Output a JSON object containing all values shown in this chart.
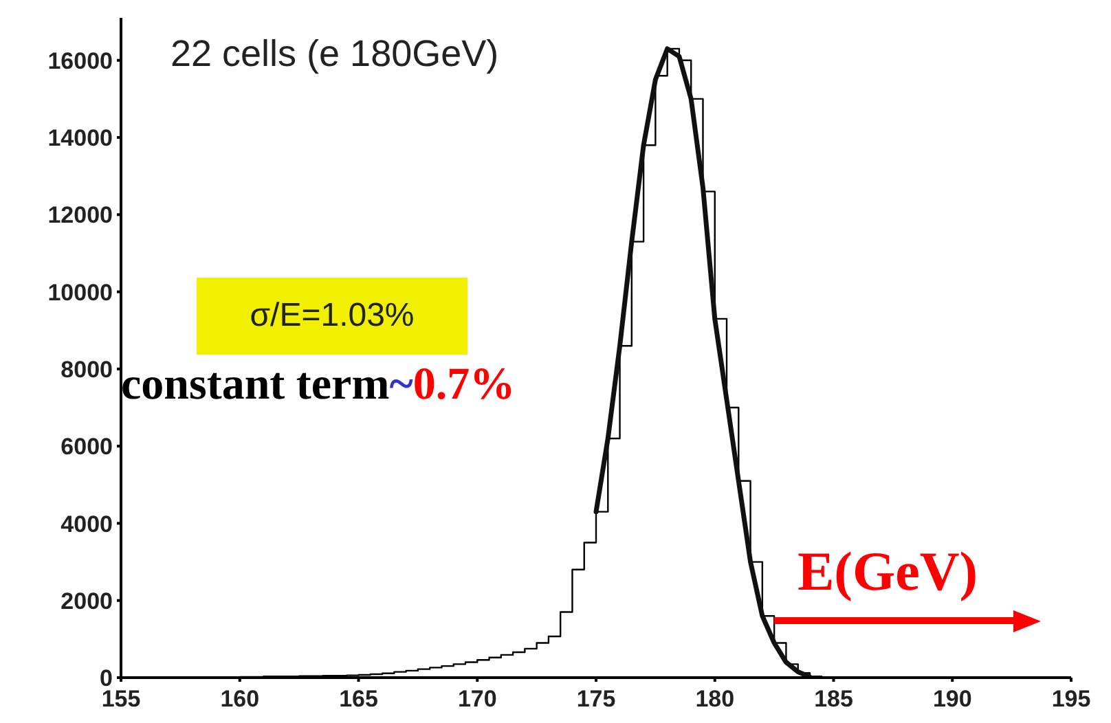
{
  "chart_data": {
    "type": "histogram",
    "xlabel": "E(GeV)",
    "annotations": [
      "22 cells (e 180GeV)",
      "σ/E=1.03%",
      "constant term~0.7%"
    ],
    "xlim": [
      155,
      195
    ],
    "xticks": [
      155,
      160,
      165,
      170,
      175,
      180,
      185,
      190,
      195
    ],
    "ylim": [
      0,
      17100
    ],
    "yticks": [
      0,
      2000,
      4000,
      6000,
      8000,
      10000,
      12000,
      14000,
      16000
    ],
    "grid": false,
    "legend": false,
    "series": [
      {
        "type": "histogram",
        "color": "#000000",
        "bins": [
          160,
          160.5,
          161,
          161.5,
          162,
          162.5,
          163,
          163.5,
          164,
          164.5,
          165,
          165.5,
          166,
          166.5,
          167,
          167.5,
          168,
          168.5,
          169,
          169.5,
          170,
          170.5,
          171,
          171.5,
          172,
          172.5,
          173,
          173.5,
          174,
          174.5,
          175,
          175.5,
          176,
          176.5,
          177,
          177.5,
          178,
          178.5,
          179,
          179.5,
          180,
          180.5,
          181,
          181.5,
          182,
          182.5,
          183,
          183.5,
          184,
          184.5,
          185
        ],
        "values": [
          20,
          20,
          30,
          30,
          30,
          40,
          40,
          50,
          50,
          60,
          70,
          90,
          110,
          150,
          180,
          220,
          260,
          300,
          350,
          400,
          460,
          520,
          590,
          660,
          750,
          900,
          1070,
          1700,
          2800,
          3500,
          4300,
          6200,
          8600,
          11300,
          13800,
          15600,
          16300,
          16000,
          15000,
          12600,
          9300,
          7000,
          5100,
          3000,
          1600,
          900,
          350,
          120,
          30,
          0
        ]
      },
      {
        "type": "line",
        "color": "#111111",
        "x": [
          175,
          175.5,
          176,
          176.5,
          177,
          177.5,
          178,
          178.5,
          179,
          179.5,
          180,
          180.5,
          181,
          181.5,
          182,
          182.5,
          183,
          183.5,
          184
        ],
        "values": [
          4300,
          6200,
          8600,
          11300,
          13800,
          15500,
          16300,
          16100,
          15000,
          12700,
          9300,
          7200,
          5100,
          3000,
          1600,
          900,
          400,
          150,
          20
        ]
      }
    ]
  }
}
